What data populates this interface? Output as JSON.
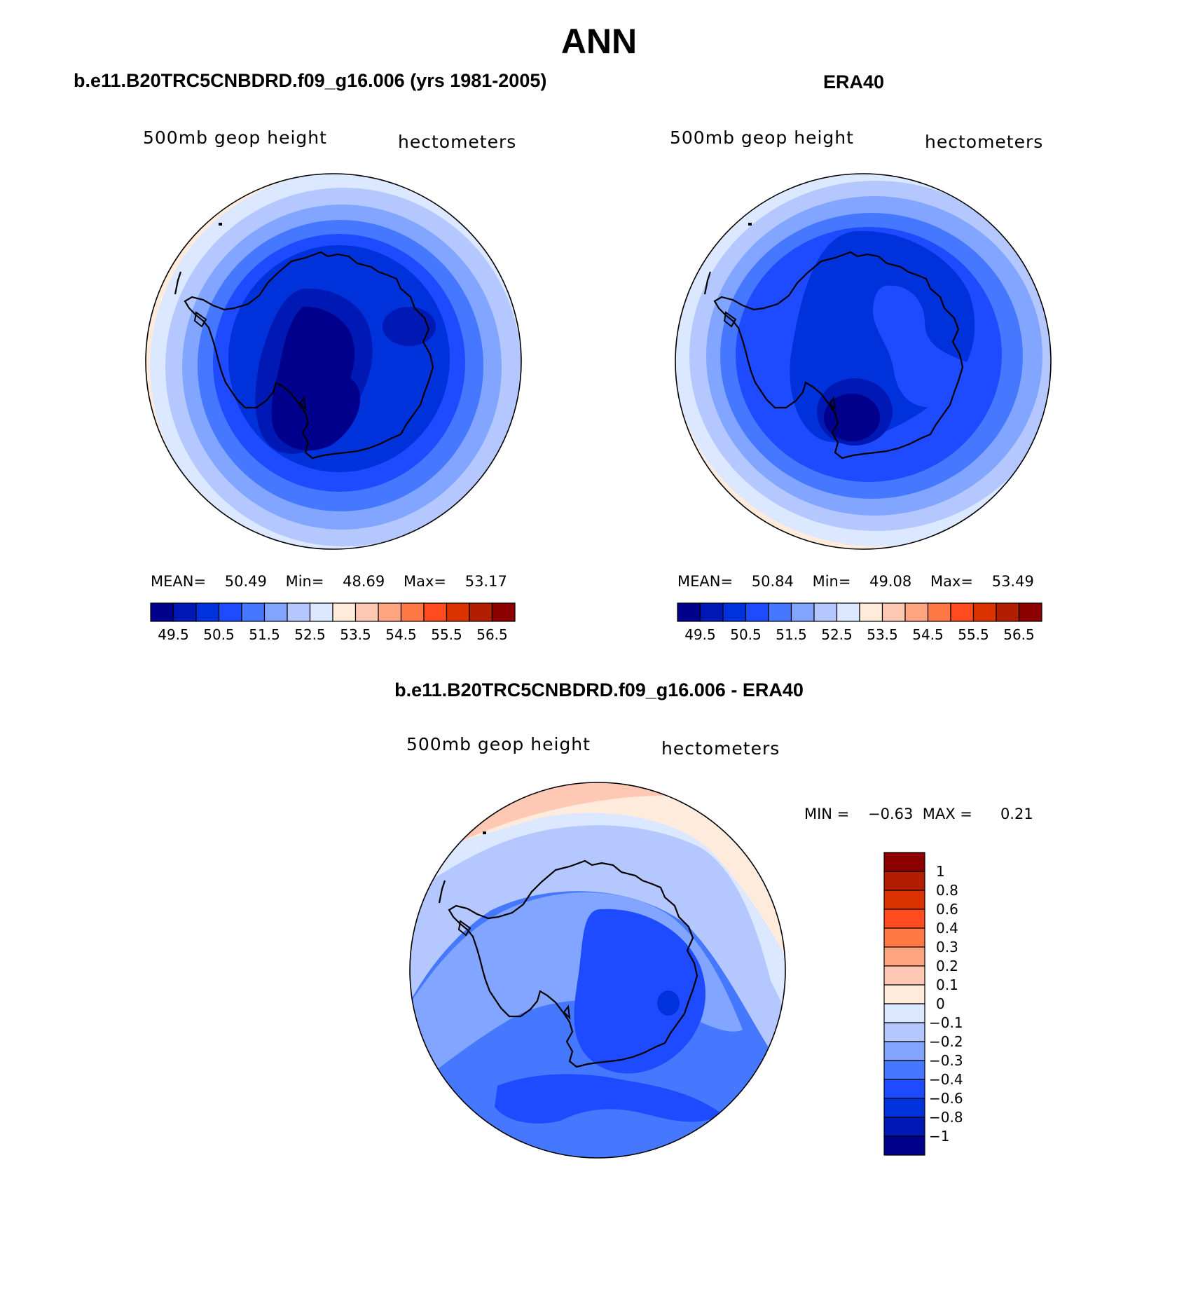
{
  "title": "ANN",
  "panels": [
    {
      "id": "model",
      "heading": "b.e11.B20TRC5CNBDRD.f09_g16.006 (yrs 1981-2005)",
      "left_label": "500mb geop height",
      "right_label": "hectometers",
      "stats": {
        "mean_label": "MEAN=",
        "mean": "50.49",
        "min_label": "Min=",
        "min": "48.69",
        "max_label": "Max=",
        "max": "53.17"
      }
    },
    {
      "id": "obs",
      "heading": "ERA40",
      "left_label": "500mb geop height",
      "right_label": "hectometers",
      "stats": {
        "mean_label": "MEAN=",
        "mean": "50.84",
        "min_label": "Min=",
        "min": "49.08",
        "max_label": "Max=",
        "max": "53.49"
      }
    },
    {
      "id": "diff",
      "heading": "b.e11.B20TRC5CNBDRD.f09_g16.006 - ERA40",
      "left_label": "500mb geop height",
      "right_label": "hectometers",
      "stats": {
        "min_label": "MIN =",
        "min": "−0.63",
        "max_label": "MAX =",
        "max": "0.21"
      }
    }
  ],
  "colorbar_main": {
    "colors": [
      "#00008c",
      "#0019b4",
      "#0032dc",
      "#1e4bff",
      "#4678ff",
      "#82a5ff",
      "#b4c8ff",
      "#dce8ff",
      "#ffebdc",
      "#ffc8b4",
      "#ffa582",
      "#ff7846",
      "#ff4b1e",
      "#dc3200",
      "#b41e00",
      "#8c0000"
    ],
    "labels": [
      "49.5",
      "50.5",
      "51.5",
      "52.5",
      "53.5",
      "54.5",
      "55.5",
      "56.5"
    ]
  },
  "colorbar_diff": {
    "colors_top_to_bottom": [
      "#8c0000",
      "#b41e00",
      "#dc3200",
      "#ff4b1e",
      "#ff7846",
      "#ffa582",
      "#ffc8b4",
      "#ffebdc",
      "#dce8ff",
      "#b4c8ff",
      "#82a5ff",
      "#4678ff",
      "#1e4bff",
      "#0032dc",
      "#0019b4",
      "#00008c"
    ],
    "labels_top_to_bottom": [
      "1",
      "0.8",
      "0.6",
      "0.4",
      "0.3",
      "0.2",
      "0.1",
      "0",
      "−0.1",
      "−0.2",
      "−0.3",
      "−0.4",
      "−0.6",
      "−0.8",
      "−1"
    ]
  }
}
